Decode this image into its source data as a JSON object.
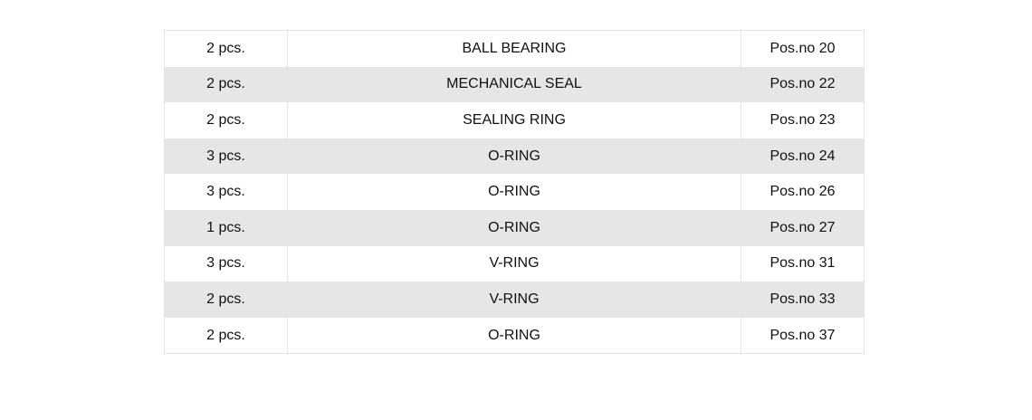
{
  "table": {
    "rows": [
      {
        "qty": "2 pcs.",
        "name": "BALL BEARING",
        "pos": "Pos.no 20"
      },
      {
        "qty": "2 pcs.",
        "name": "MECHANICAL SEAL",
        "pos": "Pos.no 22"
      },
      {
        "qty": "2 pcs.",
        "name": "SEALING RING",
        "pos": "Pos.no 23"
      },
      {
        "qty": "3 pcs.",
        "name": "O-RING",
        "pos": "Pos.no 24"
      },
      {
        "qty": "3 pcs.",
        "name": "O-RING",
        "pos": "Pos.no 26"
      },
      {
        "qty": "1 pcs.",
        "name": "O-RING",
        "pos": "Pos.no 27"
      },
      {
        "qty": "3 pcs.",
        "name": "V-RING",
        "pos": "Pos.no 31"
      },
      {
        "qty": "2 pcs.",
        "name": "V-RING",
        "pos": "Pos.no 33"
      },
      {
        "qty": "2 pcs.",
        "name": "O-RING",
        "pos": "Pos.no 37"
      }
    ]
  },
  "colors": {
    "stripe": "#e5e6e8",
    "border": "#e3e3e3"
  }
}
